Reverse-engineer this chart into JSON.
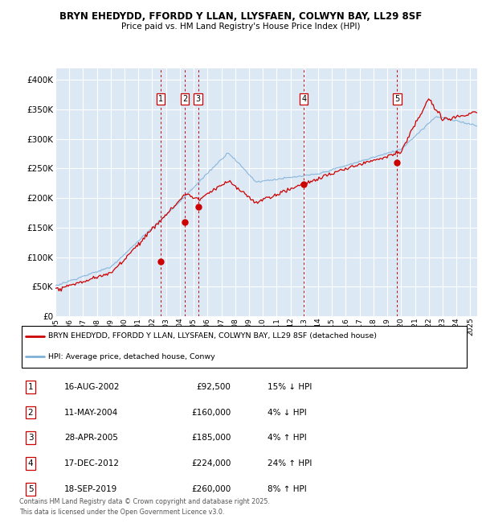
{
  "title": "BRYN EHEDYDD, FFORDD Y LLAN, LLYSFAEN, COLWYN BAY, LL29 8SF",
  "subtitle": "Price paid vs. HM Land Registry's House Price Index (HPI)",
  "ylim": [
    0,
    420000
  ],
  "xlim_start": 1995.0,
  "xlim_end": 2025.5,
  "yticks": [
    0,
    50000,
    100000,
    150000,
    200000,
    250000,
    300000,
    350000,
    400000
  ],
  "ytick_labels": [
    "£0",
    "£50K",
    "£100K",
    "£150K",
    "£200K",
    "£250K",
    "£300K",
    "£350K",
    "£400K"
  ],
  "background_color": "#dce9f5",
  "grid_color": "#ffffff",
  "red_line_color": "#cc0000",
  "blue_line_color": "#7fb0d8",
  "sale_marker_color": "#cc0000",
  "sale_line_color": "#cc0000",
  "sales": [
    {
      "num": 1,
      "year": 2002.62,
      "price": 92500,
      "date": "16-AUG-2002",
      "pct": "15%",
      "dir": "↓"
    },
    {
      "num": 2,
      "year": 2004.36,
      "price": 160000,
      "date": "11-MAY-2004",
      "pct": "4%",
      "dir": "↓"
    },
    {
      "num": 3,
      "year": 2005.32,
      "price": 185000,
      "date": "28-APR-2005",
      "pct": "4%",
      "dir": "↑"
    },
    {
      "num": 4,
      "year": 2012.96,
      "price": 224000,
      "date": "17-DEC-2012",
      "pct": "24%",
      "dir": "↑"
    },
    {
      "num": 5,
      "year": 2019.71,
      "price": 260000,
      "date": "18-SEP-2019",
      "pct": "8%",
      "dir": "↑"
    }
  ],
  "legend_line1": "BRYN EHEDYDD, FFORDD Y LLAN, LLYSFAEN, COLWYN BAY, LL29 8SF (detached house)",
  "legend_line2": "HPI: Average price, detached house, Conwy",
  "footer1": "Contains HM Land Registry data © Crown copyright and database right 2025.",
  "footer2": "This data is licensed under the Open Government Licence v3.0."
}
